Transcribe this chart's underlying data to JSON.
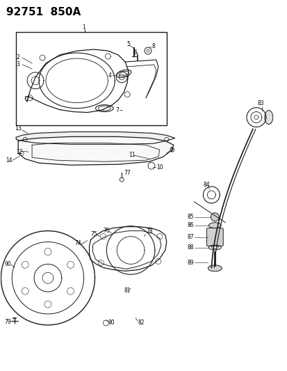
{
  "title": "92751  850A",
  "bg_color": "#ffffff",
  "line_color": "#1a1a1a",
  "title_fontsize": 10,
  "label_fontsize": 5.5,
  "fig_width": 4.14,
  "fig_height": 5.33
}
